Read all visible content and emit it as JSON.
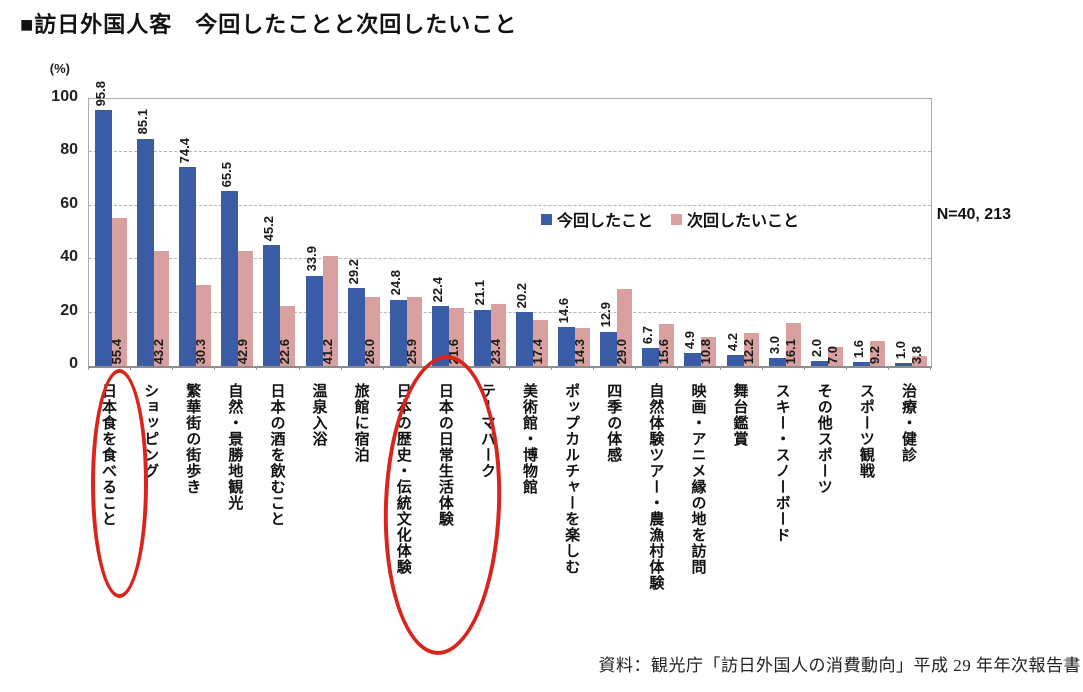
{
  "title": "■訪日外国人客　今回したことと次回したいこと",
  "chart_data": {
    "type": "bar",
    "title": "訪日外国人客　今回したことと次回したいこと",
    "unit_label": "(%)",
    "n_label": "N=40, 213",
    "ylim": [
      0,
      100
    ],
    "yticks": [
      0,
      20,
      40,
      60,
      80,
      100
    ],
    "grid": "dashed horizontal",
    "legend_position": "top-center-inside",
    "categories": [
      "日本食を食べること",
      "ショッピング",
      "繁華街の街歩き",
      "自然・景勝地観光",
      "日本の酒を飲むこと",
      "温泉入浴",
      "旅館に宿泊",
      "日本の歴史・伝統文化体験",
      "日本の日常生活体験",
      "テーマパーク",
      "美術館・博物館",
      "ポップカルチャーを楽しむ",
      "四季の体感",
      "自然体験ツアー・農漁村体験",
      "映画・アニメ縁の地を訪問",
      "舞台鑑賞",
      "スキー・スノーボード",
      "その他スポーツ",
      "スポーツ観戦",
      "治療・健診"
    ],
    "series": [
      {
        "name": "今回したこと",
        "color": "#3a5ba6",
        "values": [
          95.8,
          85.1,
          74.4,
          65.5,
          45.2,
          33.9,
          29.2,
          24.8,
          22.4,
          21.1,
          20.2,
          14.6,
          12.9,
          6.7,
          4.9,
          4.2,
          3.0,
          2.0,
          1.6,
          1.0
        ]
      },
      {
        "name": "次回したいこと",
        "color": "#d9a0a0",
        "values": [
          55.4,
          43.2,
          30.3,
          42.9,
          22.6,
          41.2,
          26.0,
          25.9,
          21.6,
          23.4,
          17.4,
          14.3,
          29.0,
          15.6,
          10.8,
          12.2,
          16.1,
          7.0,
          9.2,
          3.8
        ]
      }
    ],
    "legend": [
      {
        "name": "今回したこと",
        "color": "#3a5ba6"
      },
      {
        "name": "次回したいこと",
        "color": "#d9a0a0"
      }
    ],
    "highlighted_categories": [
      "日本食を食べること",
      "日本の歴史・伝統文化体験",
      "日本の日常生活体験"
    ],
    "highlight_color": "#da251d"
  },
  "source": "資料：観光庁「訪日外国人の消費動向」平成 29 年年次報告書"
}
